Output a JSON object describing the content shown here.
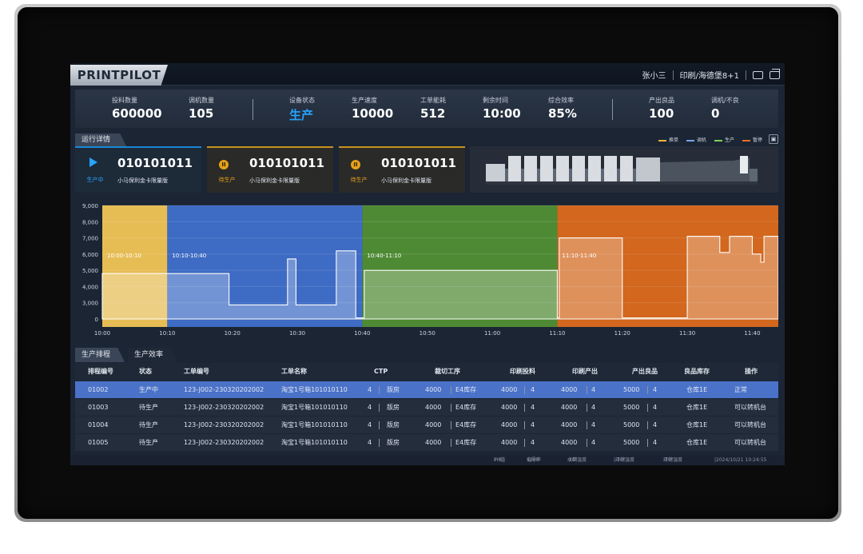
{
  "app": {
    "logo": "PRINTPILOT",
    "user": "张小三",
    "machine_name": "印刷/海德堡8+1",
    "icons": [
      "window-icon",
      "restore-icon"
    ]
  },
  "stats": [
    {
      "label": "投料数量",
      "value": "600000"
    },
    {
      "label": "调机数量",
      "value": "105"
    },
    {
      "label": "设备状态",
      "value": "生产"
    },
    {
      "label": "生产速度",
      "value": "10000"
    },
    {
      "label": "工单能耗",
      "value": "512"
    },
    {
      "label": "剩余时间",
      "value": "10:00"
    },
    {
      "label": "综合效率",
      "value": "85%"
    },
    {
      "label": "产出良品",
      "value": "100"
    },
    {
      "label": "调机/不良",
      "value": "0"
    }
  ],
  "section_run": "运行详情",
  "legend": [
    {
      "label": "换单",
      "color": "#e8b43a"
    },
    {
      "label": "调机",
      "color": "#7aa3e8"
    },
    {
      "label": "生产",
      "color": "#7fd05a"
    },
    {
      "label": "暂停",
      "color": "#e8702a"
    }
  ],
  "cards": [
    {
      "number": "010101011",
      "product": "小马保利金卡限量版",
      "state": "生产中",
      "state_color": "#27a4ff"
    },
    {
      "number": "010101011",
      "product": "小马保利金卡限量版",
      "state": "待生产",
      "state_color": "#e6a11a"
    },
    {
      "number": "010101011",
      "product": "小马保利金卡限量版",
      "state": "待生产",
      "state_color": "#e6a11a"
    }
  ],
  "chart_data": {
    "type": "area",
    "x_ticks": [
      "10:00",
      "10:10",
      "10:20",
      "10:30",
      "10:40",
      "10:50",
      "11:00",
      "11:10",
      "11:20",
      "11:30",
      "11:40"
    ],
    "y_ticks": [
      "0",
      "3,000",
      "4,000",
      "5,000",
      "6,000",
      "7,000",
      "8,000",
      "9,000"
    ],
    "ylim": [
      0,
      9000
    ],
    "segments": [
      {
        "label": "10:00-10:10",
        "start_min": 0,
        "end_min": 10,
        "color": "#e6bd55"
      },
      {
        "label": "10:10-10:40",
        "start_min": 10,
        "end_min": 40,
        "color": "#3e6bc4"
      },
      {
        "label": "10:40-11:10",
        "start_min": 40,
        "end_min": 70,
        "color": "#4e8a34"
      },
      {
        "label": "11:10-11:40",
        "start_min": 70,
        "end_min": 104,
        "color": "#d2671d"
      }
    ],
    "series": [
      {
        "values": [
          [
            0,
            4800
          ],
          [
            19.5,
            4800
          ],
          [
            19.5,
            2600
          ],
          [
            28.5,
            2600
          ],
          [
            28.5,
            5700
          ],
          [
            29.8,
            5700
          ],
          [
            29.8,
            2600
          ],
          [
            36,
            2600
          ],
          [
            36,
            6200
          ],
          [
            39,
            6200
          ],
          [
            39,
            200
          ],
          [
            40.3,
            200
          ],
          [
            40.3,
            5000
          ],
          [
            70,
            5000
          ],
          [
            70,
            200
          ],
          [
            70.3,
            200
          ],
          [
            70.3,
            7000
          ],
          [
            80,
            7000
          ],
          [
            80,
            200
          ],
          [
            90,
            200
          ],
          [
            90,
            7100
          ],
          [
            95,
            7100
          ],
          [
            95,
            6100
          ],
          [
            96.5,
            6100
          ],
          [
            96.5,
            7100
          ],
          [
            100,
            7100
          ],
          [
            100,
            6000
          ],
          [
            101.3,
            6000
          ],
          [
            101.3,
            5500
          ],
          [
            101.8,
            5500
          ],
          [
            101.8,
            7100
          ],
          [
            104,
            7100
          ]
        ]
      }
    ]
  },
  "tabs": [
    {
      "label": "生产排程"
    },
    {
      "label": "生产效率"
    }
  ],
  "table": {
    "headers": [
      "排程编号",
      "状态",
      "工单编号",
      "工单名称",
      "CTP",
      "裁切工序",
      "印刷投料",
      "印刷产出",
      "产出良品",
      "良品库存",
      "操作"
    ],
    "rows": [
      {
        "id": "01002",
        "status": "生产中",
        "order": "123-J002-230320202002",
        "name": "淘宝1号箱101010110",
        "ctp_n": "4",
        "ctp_t": "版房",
        "cut_n": "4000",
        "cut_t": "E4库存",
        "in_a": "4000",
        "in_b": "4",
        "out_a": "4000",
        "out_b": "4",
        "good_a": "5000",
        "good_b": "4",
        "stock": "仓库1E",
        "op": "正常"
      },
      {
        "id": "01003",
        "status": "待生产",
        "order": "123-J002-230320202002",
        "name": "淘宝1号箱101010110",
        "ctp_n": "4",
        "ctp_t": "版房",
        "cut_n": "4000",
        "cut_t": "E4库存",
        "in_a": "4000",
        "in_b": "4",
        "out_a": "4000",
        "out_b": "4",
        "good_a": "5000",
        "good_b": "4",
        "stock": "仓库1E",
        "op": "可以转机台"
      },
      {
        "id": "01004",
        "status": "待生产",
        "order": "123-J002-230320202002",
        "name": "淘宝1号箱101010110",
        "ctp_n": "4",
        "ctp_t": "版房",
        "cut_n": "4000",
        "cut_t": "E4库存",
        "in_a": "4000",
        "in_b": "4",
        "out_a": "4000",
        "out_b": "4",
        "good_a": "5000",
        "good_b": "4",
        "stock": "仓库1E",
        "op": "可以转机台"
      },
      {
        "id": "01005",
        "status": "待生产",
        "order": "123-J002-230320202002",
        "name": "淘宝1号箱101010110",
        "ctp_n": "4",
        "ctp_t": "版房",
        "cut_n": "4000",
        "cut_t": "E4库存",
        "in_a": "4000",
        "in_b": "4",
        "out_a": "4000",
        "out_b": "4",
        "good_a": "5000",
        "good_b": "4",
        "stock": "仓库1E",
        "op": "可以转机台"
      }
    ]
  },
  "footer": [
    {
      "label": "PH值",
      "value": "7.5"
    },
    {
      "label": "电导率",
      "value": "1200"
    },
    {
      "label": "水箱温度",
      "value": "-20°"
    },
    {
      "label": "环境温度",
      "value": "-20°"
    },
    {
      "label": "环境温度",
      "value": "-20°"
    },
    {
      "label": "",
      "value": "2024/10/21  10:24:55"
    }
  ]
}
